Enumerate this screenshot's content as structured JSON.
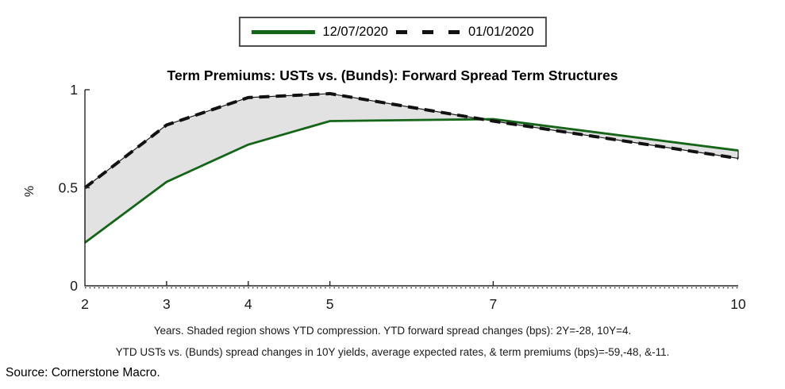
{
  "title": "Term Premiums: USTs vs. (Bunds): Forward Spread Term Structures",
  "legend": {
    "items": [
      {
        "label": "12/07/2020",
        "style": "solid-green"
      },
      {
        "label": "01/01/2020",
        "style": "dashed-black"
      }
    ]
  },
  "footnotes": {
    "line1": "Years. Shaded region shows YTD compression. YTD forward spread changes (bps): 2Y=-28, 10Y=4.",
    "line2": "YTD USTs vs. (Bunds) spread changes in 10Y yields, average expected rates, & term premiums (bps)=-59,-48, &-11."
  },
  "source": "Source: Cornerstone Macro.",
  "colors": {
    "green": "#156518",
    "dashed_black": "#111111",
    "shade_fill": "#e2e2e2",
    "shade_edge": "#1a1a1a",
    "axis": "#262626"
  },
  "chart_data": {
    "type": "line",
    "title": "Term Premiums: USTs vs. (Bunds): Forward Spread Term Structures",
    "xlabel": "Years",
    "ylabel": "%",
    "x": [
      2,
      3,
      4,
      5,
      7,
      10
    ],
    "series": [
      {
        "name": "12/07/2020",
        "style": "solid",
        "color": "green",
        "values": [
          0.22,
          0.53,
          0.72,
          0.84,
          0.85,
          0.69
        ]
      },
      {
        "name": "01/01/2020",
        "style": "dashed",
        "color": "black",
        "values": [
          0.5,
          0.82,
          0.96,
          0.98,
          0.84,
          0.65
        ]
      }
    ],
    "shaded_region": "area between the two curves (YTD compression)",
    "xlim": [
      2,
      10
    ],
    "ylim": [
      0,
      1
    ],
    "x_ticks": [
      2,
      3,
      4,
      5,
      7,
      10
    ],
    "x_tick_labels": [
      "2",
      "3",
      "4",
      "5",
      "7",
      "10"
    ],
    "y_ticks": [
      0,
      0.5,
      1
    ],
    "y_tick_labels": [
      "0",
      "0.5",
      "1"
    ],
    "grid": false,
    "legend_position": "top-center"
  }
}
